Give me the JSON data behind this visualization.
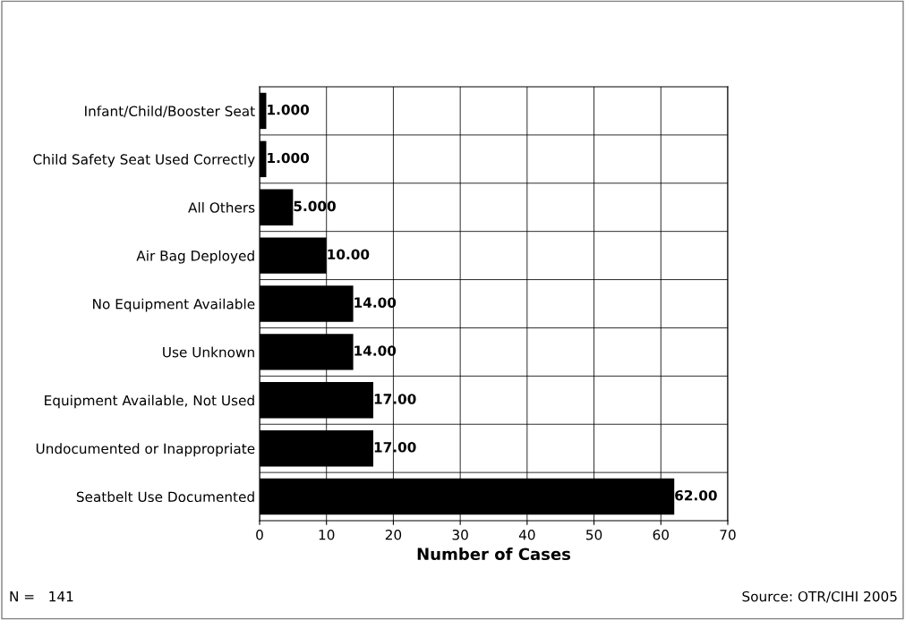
{
  "chart_data": {
    "type": "bar",
    "orientation": "horizontal",
    "xlabel": "Number of Cases",
    "categories": [
      "Infant/Child/Booster Seat",
      "Child Safety Seat Used Correctly",
      "All Others",
      "Air Bag Deployed",
      "No Equipment Available",
      "Use Unknown",
      "Equipment Available, Not Used",
      "Undocumented or Inappropriate",
      "Seatbelt Use Documented"
    ],
    "values": [
      1,
      1,
      5,
      10,
      14,
      14,
      17,
      17,
      62
    ],
    "value_labels": [
      "1.000",
      "1.000",
      "5.000",
      "10.00",
      "14.00",
      "14.00",
      "17.00",
      "17.00",
      "62.00"
    ],
    "color": "#000000",
    "xlim": [
      0,
      70
    ],
    "xticks": [
      0,
      10,
      20,
      30,
      40,
      50,
      60,
      70
    ],
    "grid": true,
    "annotations": [
      "N =   141",
      "Source: OTR/CIHI 2005"
    ]
  }
}
